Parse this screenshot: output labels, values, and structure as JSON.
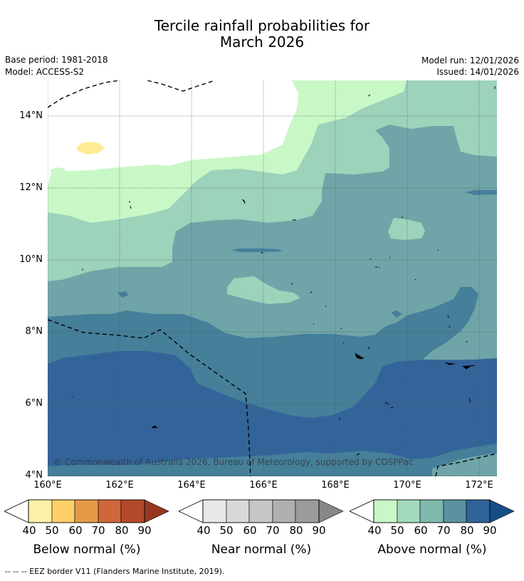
{
  "title": {
    "line1": "Tercile rainfall probabilities for",
    "line2": "March 2026"
  },
  "meta": {
    "base_period": "Base period: 1981-2018",
    "model": "Model: ACCESS-S2",
    "model_run": "Model run: 12/01/2026",
    "issued": "Issued: 14/01/2026"
  },
  "map": {
    "lat_labels": [
      "14°N",
      "12°N",
      "10°N",
      "8°N",
      "6°N",
      "4°N"
    ],
    "lon_labels": [
      "160°E",
      "162°E",
      "164°E",
      "166°E",
      "168°E",
      "170°E",
      "172°E"
    ],
    "copyright": "© Commonwealth of Australia 2026, Bureau of Meteorology, supported by COSPPac"
  },
  "colorbars": [
    {
      "name": "below",
      "label": "Below normal (%)",
      "ticks": [
        "40",
        "50",
        "60",
        "70",
        "80",
        "90"
      ],
      "colors": [
        "#fff0a8",
        "#fdd067",
        "#e69a48",
        "#d0673a",
        "#b34a2a",
        "#97371f"
      ]
    },
    {
      "name": "near",
      "label": "Near normal (%)",
      "ticks": [
        "40",
        "50",
        "60",
        "70",
        "80",
        "90"
      ],
      "colors": [
        "#e8e8e8",
        "#d8d8d8",
        "#c6c6c6",
        "#b0b0b0",
        "#9b9b9b",
        "#878787"
      ]
    },
    {
      "name": "above",
      "label": "Above normal (%)",
      "ticks": [
        "40",
        "50",
        "60",
        "70",
        "80",
        "90"
      ],
      "colors": [
        "#c9f8c7",
        "#a2d9bd",
        "#7fb8ad",
        "#5a92a0",
        "#2f6399",
        "#164f85"
      ]
    }
  ],
  "footnote": "--  --  -- EEZ border V11 (Flanders Marine Institute, 2019).",
  "colors": {
    "above_40": "#c9f8c7",
    "above_50": "#9dd2bb",
    "above_60": "#6fa5a8",
    "above_70": "#457f9a",
    "above_80": "#336499",
    "below_40": "#ffea94"
  }
}
